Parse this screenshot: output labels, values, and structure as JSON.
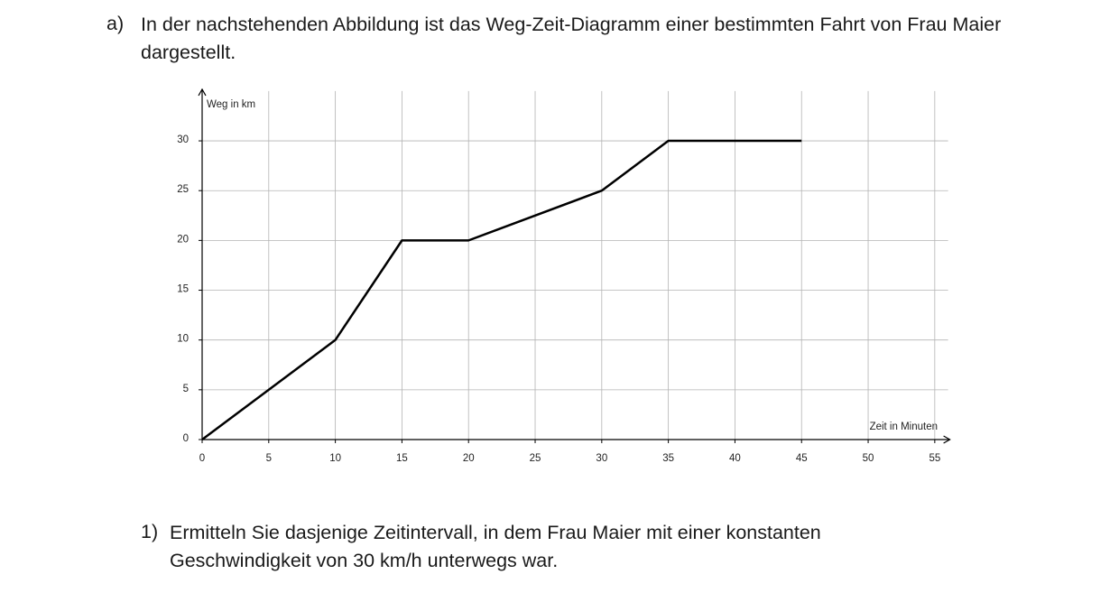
{
  "intro": {
    "label": "a)",
    "text": "In der nachstehenden Abbildung ist das Weg-Zeit-Diagramm einer bestimmten Fahrt von Frau Maier dargestellt."
  },
  "chart_data": {
    "type": "line",
    "y_label": "Weg in km",
    "x_label": "Zeit in Minuten",
    "x": [
      0,
      10,
      15,
      20,
      30,
      35,
      45
    ],
    "series": [
      {
        "color": "#000000",
        "values": [
          0,
          10,
          20,
          20,
          25,
          30,
          30
        ]
      }
    ],
    "xlim": [
      0,
      56
    ],
    "ylim": [
      0,
      35
    ],
    "xticks": [
      0,
      5,
      10,
      15,
      20,
      25,
      30,
      35,
      40,
      45,
      50,
      55
    ],
    "yticks": [
      0,
      5,
      10,
      15,
      20,
      25,
      30
    ],
    "grid": true
  },
  "question": {
    "label": "1)",
    "text": "Ermitteln Sie dasjenige Zeitintervall, in dem Frau Maier mit einer konstanten Geschwindigkeit von 30 km/h unterwegs war."
  }
}
